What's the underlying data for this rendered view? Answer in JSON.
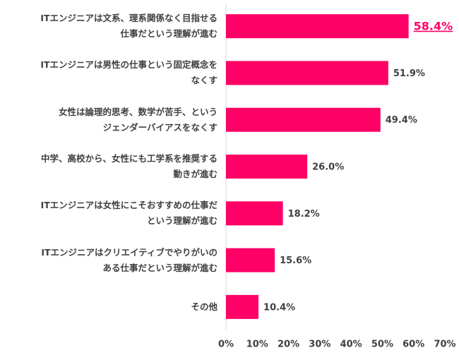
{
  "chart_data": {
    "type": "bar",
    "orientation": "horizontal",
    "categories": [
      "ITエンジニアは文系、理系関係なく目指せる\n仕事だという理解が進む",
      "ITエンジニアは男性の仕事という固定概念を\nなくす",
      "女性は論理的思考、数学が苦手、という\nジェンダーバイアスをなくす",
      "中学、高校から、女性にも工学系を推奨する\n動きが進む",
      "ITエンジニアは女性にこそおすすめの仕事だ\nという理解が進む",
      "ITエンジニアはクリエイティブでやりがいの\nある仕事だという理解が進む",
      "その他"
    ],
    "values": [
      58.4,
      51.9,
      49.4,
      26.0,
      18.2,
      15.6,
      10.4
    ],
    "value_labels": [
      "58.4%",
      "51.9%",
      "49.4%",
      "26.0%",
      "18.2%",
      "15.6%",
      "10.4%"
    ],
    "color": "#ff0066",
    "xlim": [
      0,
      70
    ],
    "xticks": [
      {
        "value": 0,
        "label": "0%"
      },
      {
        "value": 10,
        "label": "10%"
      },
      {
        "value": 20,
        "label": "20%"
      },
      {
        "value": 30,
        "label": "30%"
      },
      {
        "value": 40,
        "label": "40%"
      },
      {
        "value": 50,
        "label": "50%"
      },
      {
        "value": 60,
        "label": "60%"
      },
      {
        "value": 70,
        "label": "70%"
      }
    ],
    "grid": false
  }
}
